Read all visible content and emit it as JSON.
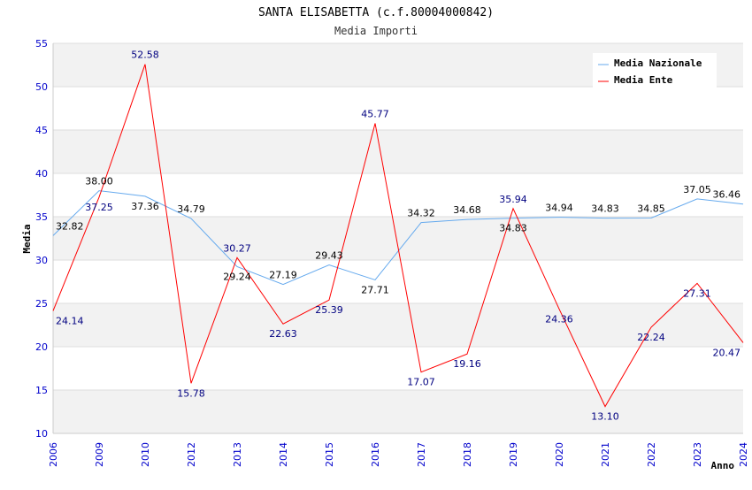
{
  "chart_data": {
    "type": "line",
    "title": "SANTA ELISABETTA (c.f.80004000842)",
    "subtitle": "Media Importi",
    "xlabel": "Anno",
    "ylabel": "Media",
    "ylim": [
      10,
      55
    ],
    "yticks": [
      10,
      15,
      20,
      25,
      30,
      35,
      40,
      45,
      50,
      55
    ],
    "categories": [
      "2006",
      "2009",
      "2010",
      "2012",
      "2013",
      "2014",
      "2015",
      "2016",
      "2017",
      "2018",
      "2019",
      "2020",
      "2021",
      "2022",
      "2023",
      "2024"
    ],
    "series": [
      {
        "name": "Media Nazionale",
        "color": "#66aaee",
        "label_color": "#000000",
        "values": [
          32.82,
          38.0,
          37.36,
          34.79,
          29.24,
          27.19,
          29.43,
          27.71,
          34.32,
          34.68,
          34.83,
          34.94,
          34.83,
          34.85,
          37.05,
          36.46
        ]
      },
      {
        "name": "Media Ente",
        "color": "#ff0000",
        "label_color": "#000080",
        "values": [
          24.14,
          37.25,
          52.58,
          15.78,
          30.27,
          22.63,
          25.39,
          45.77,
          17.07,
          19.16,
          35.94,
          24.36,
          13.1,
          22.24,
          27.31,
          20.47
        ]
      }
    ],
    "legend": "top-right",
    "grid": true
  }
}
